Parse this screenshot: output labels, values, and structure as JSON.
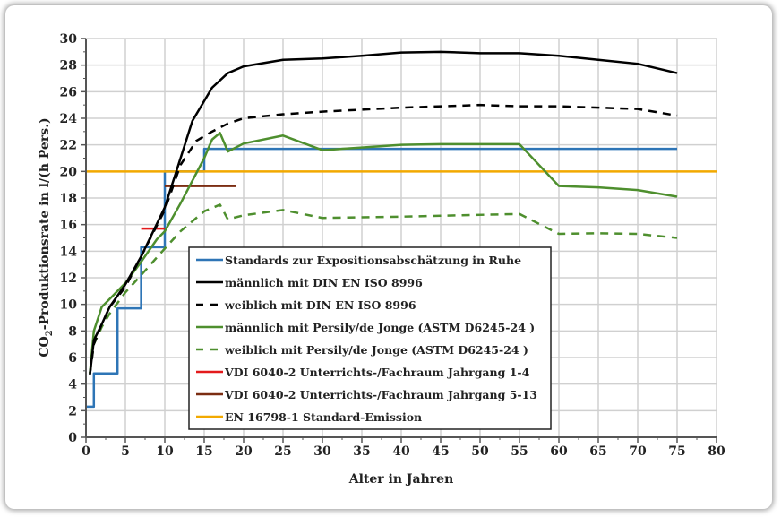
{
  "chart_data": {
    "type": "line",
    "title": "",
    "xlabel": "Alter in Jahren",
    "ylabel_parts": [
      "CO",
      "2",
      "-Produktionsrate in l/(h Pers.)"
    ],
    "xlim": [
      0,
      80
    ],
    "ylim": [
      0,
      30
    ],
    "xticks": [
      0,
      5,
      10,
      15,
      20,
      25,
      30,
      35,
      40,
      45,
      50,
      55,
      60,
      65,
      70,
      75,
      80
    ],
    "yticks": [
      0,
      2,
      4,
      6,
      8,
      10,
      12,
      14,
      16,
      18,
      20,
      22,
      24,
      26,
      28,
      30
    ],
    "grid": true,
    "legend_placement": "bottom-center",
    "series": [
      {
        "name": "Standards zur Expositionsabschätzung in Ruhe",
        "color": "#2e75b6",
        "dash": false,
        "step": true,
        "points": [
          [
            0,
            2.3
          ],
          [
            1,
            2.3
          ],
          [
            1,
            4.8
          ],
          [
            4,
            4.8
          ],
          [
            4,
            9.7
          ],
          [
            7,
            9.7
          ],
          [
            7,
            14.3
          ],
          [
            10,
            14.3
          ],
          [
            10,
            20
          ],
          [
            15,
            20
          ],
          [
            15,
            21.7
          ],
          [
            75,
            21.7
          ]
        ]
      },
      {
        "name": "männlich mit DIN EN ISO 8996",
        "color": "#000000",
        "dash": false,
        "points": [
          [
            0.5,
            4.7
          ],
          [
            1,
            7.3
          ],
          [
            2,
            8.5
          ],
          [
            3,
            9.8
          ],
          [
            5,
            11.5
          ],
          [
            7,
            13.6
          ],
          [
            10,
            17.3
          ],
          [
            12,
            21
          ],
          [
            13.5,
            23.8
          ],
          [
            16,
            26.3
          ],
          [
            18,
            27.4
          ],
          [
            20,
            27.9
          ],
          [
            25,
            28.4
          ],
          [
            30,
            28.5
          ],
          [
            35,
            28.7
          ],
          [
            40,
            28.95
          ],
          [
            45,
            29
          ],
          [
            50,
            28.9
          ],
          [
            55,
            28.9
          ],
          [
            60,
            28.7
          ],
          [
            65,
            28.4
          ],
          [
            70,
            28.1
          ],
          [
            75,
            27.4
          ]
        ]
      },
      {
        "name": "weiblich mit DIN EN ISO 8996",
        "color": "#000000",
        "dash": true,
        "points": [
          [
            0.5,
            4.8
          ],
          [
            1,
            7
          ],
          [
            2,
            8.5
          ],
          [
            3,
            9.8
          ],
          [
            5,
            11.3
          ],
          [
            7,
            13.6
          ],
          [
            10,
            17.1
          ],
          [
            12,
            20.5
          ],
          [
            14,
            22.3
          ],
          [
            16,
            23
          ],
          [
            18,
            23.6
          ],
          [
            20,
            24
          ],
          [
            25,
            24.3
          ],
          [
            30,
            24.5
          ],
          [
            40,
            24.8
          ],
          [
            50,
            25
          ],
          [
            55,
            24.9
          ],
          [
            60,
            24.9
          ],
          [
            65,
            24.8
          ],
          [
            70,
            24.7
          ],
          [
            75,
            24.2
          ]
        ]
      },
      {
        "name": "männlich mit Persily/de Jonge (ASTM D6245-24 )",
        "color": "#4e8f2e",
        "dash": false,
        "points": [
          [
            0.5,
            4.8
          ],
          [
            1,
            8
          ],
          [
            2,
            9.8
          ],
          [
            3,
            10.4
          ],
          [
            5,
            11.6
          ],
          [
            7,
            13.2
          ],
          [
            9,
            14.9
          ],
          [
            10,
            15.5
          ],
          [
            12,
            17.6
          ],
          [
            15,
            21
          ],
          [
            16,
            22.4
          ],
          [
            17,
            22.9
          ],
          [
            18,
            21.5
          ],
          [
            20,
            22.1
          ],
          [
            25,
            22.7
          ],
          [
            30,
            21.6
          ],
          [
            35,
            21.8
          ],
          [
            40,
            22
          ],
          [
            45,
            22.05
          ],
          [
            55,
            22.05
          ],
          [
            60,
            18.9
          ],
          [
            65,
            18.8
          ],
          [
            70,
            18.6
          ],
          [
            75,
            18.1
          ]
        ]
      },
      {
        "name": "weiblich mit Persily/de Jonge (ASTM D6245-24 )",
        "color": "#4e8f2e",
        "dash": true,
        "points": [
          [
            0.5,
            4.8
          ],
          [
            1,
            7
          ],
          [
            2,
            8.3
          ],
          [
            3,
            9.3
          ],
          [
            5,
            10.9
          ],
          [
            7,
            12.2
          ],
          [
            10,
            14.2
          ],
          [
            12,
            15.5
          ],
          [
            15,
            17
          ],
          [
            17,
            17.5
          ],
          [
            18,
            16.4
          ],
          [
            20,
            16.7
          ],
          [
            25,
            17.1
          ],
          [
            30,
            16.5
          ],
          [
            40,
            16.6
          ],
          [
            55,
            16.8
          ],
          [
            60,
            15.3
          ],
          [
            65,
            15.35
          ],
          [
            70,
            15.3
          ],
          [
            75,
            15
          ]
        ]
      },
      {
        "name": "VDI 6040-2 Unterrichts-/Fachraum Jahrgang 1-4",
        "color": "#e31a1c",
        "dash": false,
        "points": [
          [
            7,
            15.7
          ],
          [
            10,
            15.7
          ]
        ]
      },
      {
        "name": "VDI 6040-2 Unterrichts-/Fachraum Jahrgang 5-13",
        "color": "#7b2d12",
        "dash": false,
        "points": [
          [
            10,
            18.9
          ],
          [
            19,
            18.9
          ]
        ]
      },
      {
        "name": "EN 16798-1 Standard-Emission",
        "color": "#f2a900",
        "dash": false,
        "points": [
          [
            0,
            20
          ],
          [
            80,
            20
          ]
        ]
      }
    ]
  }
}
